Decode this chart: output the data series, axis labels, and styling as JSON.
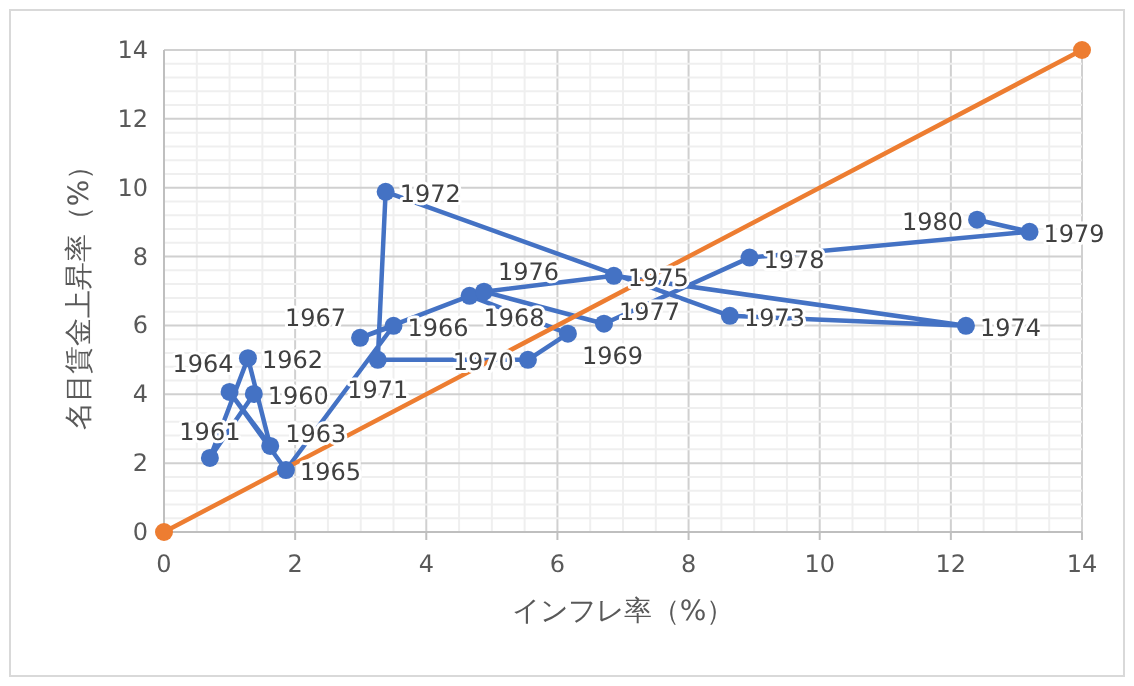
{
  "chart_data": {
    "type": "line",
    "xlabel": "インフレ率（%）",
    "ylabel": "名目賃金上昇率（%）",
    "xlim": [
      0,
      14
    ],
    "ylim": [
      0,
      14
    ],
    "xticks": [
      0,
      2,
      4,
      6,
      8,
      10,
      12,
      14
    ],
    "yticks": [
      0,
      2,
      4,
      6,
      8,
      10,
      12,
      14
    ],
    "grid": true,
    "marker": "circle",
    "line_style": "solid",
    "series": [
      {
        "color": "#4472c4",
        "x": [
          1.37,
          0.7,
          1.28,
          1.62,
          1.0,
          1.86,
          3.5,
          2.99,
          4.66,
          6.16,
          5.55,
          3.26,
          3.38,
          8.63,
          12.23,
          6.86,
          4.88,
          6.71,
          8.93,
          13.2,
          12.4
        ],
        "values": [
          4.01,
          2.15,
          5.05,
          2.5,
          4.07,
          1.8,
          5.99,
          5.64,
          6.86,
          5.76,
          5.0,
          5.0,
          9.88,
          6.28,
          5.99,
          7.44,
          6.98,
          6.05,
          7.97,
          8.72,
          9.07
        ]
      },
      {
        "color": "#ed7d31",
        "x": [
          0,
          14
        ],
        "values": [
          0,
          14
        ]
      }
    ],
    "annotations": [
      {
        "text": "1960",
        "x": 1.37,
        "y": 4.01
      },
      {
        "text": "1961",
        "x": 0.7,
        "y": 2.15
      },
      {
        "text": "1962",
        "x": 1.28,
        "y": 5.05
      },
      {
        "text": "1963",
        "x": 1.62,
        "y": 2.5
      },
      {
        "text": "1964",
        "x": 1.0,
        "y": 4.07
      },
      {
        "text": "1965",
        "x": 1.86,
        "y": 1.8
      },
      {
        "text": "1966",
        "x": 3.5,
        "y": 5.99
      },
      {
        "text": "1967",
        "x": 2.99,
        "y": 5.64
      },
      {
        "text": "1968",
        "x": 4.66,
        "y": 6.86
      },
      {
        "text": "1969",
        "x": 6.16,
        "y": 5.76
      },
      {
        "text": "1970",
        "x": 5.55,
        "y": 5.0
      },
      {
        "text": "1971",
        "x": 3.26,
        "y": 5.0
      },
      {
        "text": "1972",
        "x": 3.38,
        "y": 9.88
      },
      {
        "text": "1973",
        "x": 8.63,
        "y": 6.28
      },
      {
        "text": "1974",
        "x": 12.23,
        "y": 5.99
      },
      {
        "text": "1975",
        "x": 6.86,
        "y": 7.44
      },
      {
        "text": "1976",
        "x": 4.88,
        "y": 6.98
      },
      {
        "text": "1977",
        "x": 6.71,
        "y": 6.05
      },
      {
        "text": "1978",
        "x": 8.93,
        "y": 7.97
      },
      {
        "text": "1979",
        "x": 13.2,
        "y": 8.72
      },
      {
        "text": "1980",
        "x": 12.4,
        "y": 9.07
      }
    ]
  }
}
